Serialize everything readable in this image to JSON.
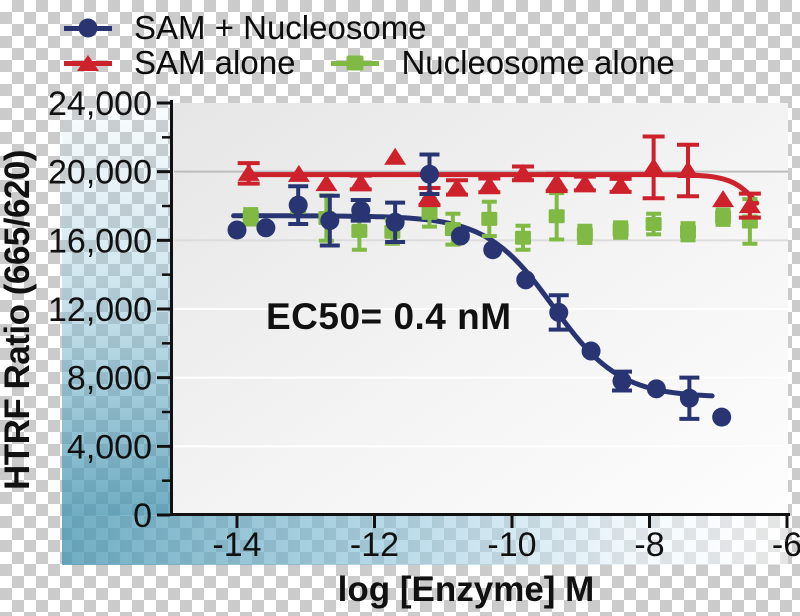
{
  "legend": {
    "items": [
      {
        "label": "SAM + Nucleosome",
        "marker": "circle",
        "color": "#293573"
      },
      {
        "label": "SAM alone",
        "marker": "triangle",
        "color": "#cd212c"
      },
      {
        "label": "Nucleosome alone",
        "marker": "square",
        "color": "#80b944"
      }
    ]
  },
  "annotation": {
    "ec50": "EC50= 0.4 nM"
  },
  "chart_data": {
    "type": "scatter",
    "title": "",
    "xlabel": "log [Enzyme] M",
    "ylabel": "HTRF Ratio (665/620)",
    "xlim": [
      -14.9,
      -6.0
    ],
    "ylim": [
      0,
      24000
    ],
    "grid": true,
    "legend_position": "top-left",
    "x_axis": {
      "title": "log [Enzyme] M",
      "tick_values": [
        -14,
        -12,
        -10,
        -8,
        -6
      ],
      "tick_labels": [
        "-14",
        "-12",
        "-10",
        "-8",
        "-6"
      ]
    },
    "y_axis": {
      "title": "HTRF Ratio (665/620)",
      "tick_values": [
        0,
        4000,
        8000,
        12000,
        16000,
        20000,
        24000
      ],
      "tick_labels": [
        "0",
        "4,000",
        "8,000",
        "12,000",
        "16,000",
        "20,000",
        "24,000"
      ],
      "minor_tick_values": [
        2000,
        6000,
        10000,
        14000,
        18000,
        22000
      ],
      "gridline_values": [
        4000,
        8000,
        12000,
        16000,
        20000
      ]
    },
    "series": [
      {
        "id": "sam-nucleosome",
        "name": "SAM + Nucleosome",
        "marker": "circle",
        "color": "#293573",
        "cap_width": 20,
        "points": [
          [
            -14.0,
            16600,
            0
          ],
          [
            -13.58,
            16730,
            0
          ],
          [
            -13.11,
            18050,
            1100
          ],
          [
            -12.65,
            17150,
            1450
          ],
          [
            -12.2,
            17750,
            600
          ],
          [
            -11.7,
            17050,
            1150
          ],
          [
            -11.2,
            19850,
            1150
          ],
          [
            -10.75,
            16250,
            0
          ],
          [
            -10.28,
            15450,
            0
          ],
          [
            -9.8,
            13700,
            0
          ],
          [
            -9.32,
            11800,
            1000
          ],
          [
            -8.85,
            9550,
            0
          ],
          [
            -8.4,
            7800,
            550
          ],
          [
            -7.9,
            7350,
            0
          ],
          [
            -7.42,
            6800,
            1200
          ],
          [
            -6.95,
            5700,
            0
          ]
        ],
        "fit": {
          "top": 17430,
          "bottom": 6850,
          "logec50": -9.4,
          "hill": 0.9,
          "x_from": -14.05,
          "x_to": -7.05
        },
        "ec50_nM": 0.4
      },
      {
        "id": "sam-alone",
        "name": "SAM alone",
        "marker": "triangle",
        "color": "#cd212c",
        "cap_width": 22,
        "points": [
          [
            -13.83,
            19900,
            600
          ],
          [
            -13.1,
            19840,
            0
          ],
          [
            -12.7,
            19300,
            0
          ],
          [
            -12.2,
            19370,
            400
          ],
          [
            -11.7,
            20840,
            0
          ],
          [
            -11.2,
            18550,
            500
          ],
          [
            -10.8,
            19080,
            420
          ],
          [
            -10.33,
            19200,
            400
          ],
          [
            -9.84,
            19900,
            400
          ],
          [
            -9.35,
            19370,
            500
          ],
          [
            -8.94,
            19310,
            400
          ],
          [
            -8.42,
            19200,
            380
          ],
          [
            -7.94,
            20250,
            1800
          ],
          [
            -7.44,
            20070,
            1500
          ],
          [
            -6.93,
            18370,
            0
          ],
          [
            -6.54,
            18020,
            700
          ]
        ],
        "fit": {
          "top": 19830,
          "bottom": 15000,
          "logec50": -6.3,
          "hill": 2,
          "x_from": -13.88,
          "x_to": -6.44
        },
        "ec50_nM": null
      },
      {
        "id": "nucleosome-alone",
        "name": "Nucleosome alone",
        "marker": "square",
        "color": "#80b944",
        "cap_width": 15,
        "points": [
          [
            -13.8,
            17370,
            450
          ],
          [
            -13.11,
            17950,
            0
          ],
          [
            -12.7,
            17300,
            1320
          ],
          [
            -12.22,
            16550,
            1100
          ],
          [
            -11.74,
            16500,
            700
          ],
          [
            -11.2,
            17600,
            800
          ],
          [
            -10.86,
            16650,
            900
          ],
          [
            -10.33,
            17250,
            1000
          ],
          [
            -9.84,
            16150,
            700
          ],
          [
            -9.35,
            17400,
            1350
          ],
          [
            -8.94,
            16350,
            500
          ],
          [
            -8.42,
            16600,
            450
          ],
          [
            -7.94,
            16950,
            600
          ],
          [
            -7.44,
            16500,
            500
          ],
          [
            -6.93,
            17350,
            450
          ],
          [
            -6.54,
            17100,
            1300
          ]
        ],
        "fit": null,
        "ec50_nM": null
      }
    ]
  }
}
